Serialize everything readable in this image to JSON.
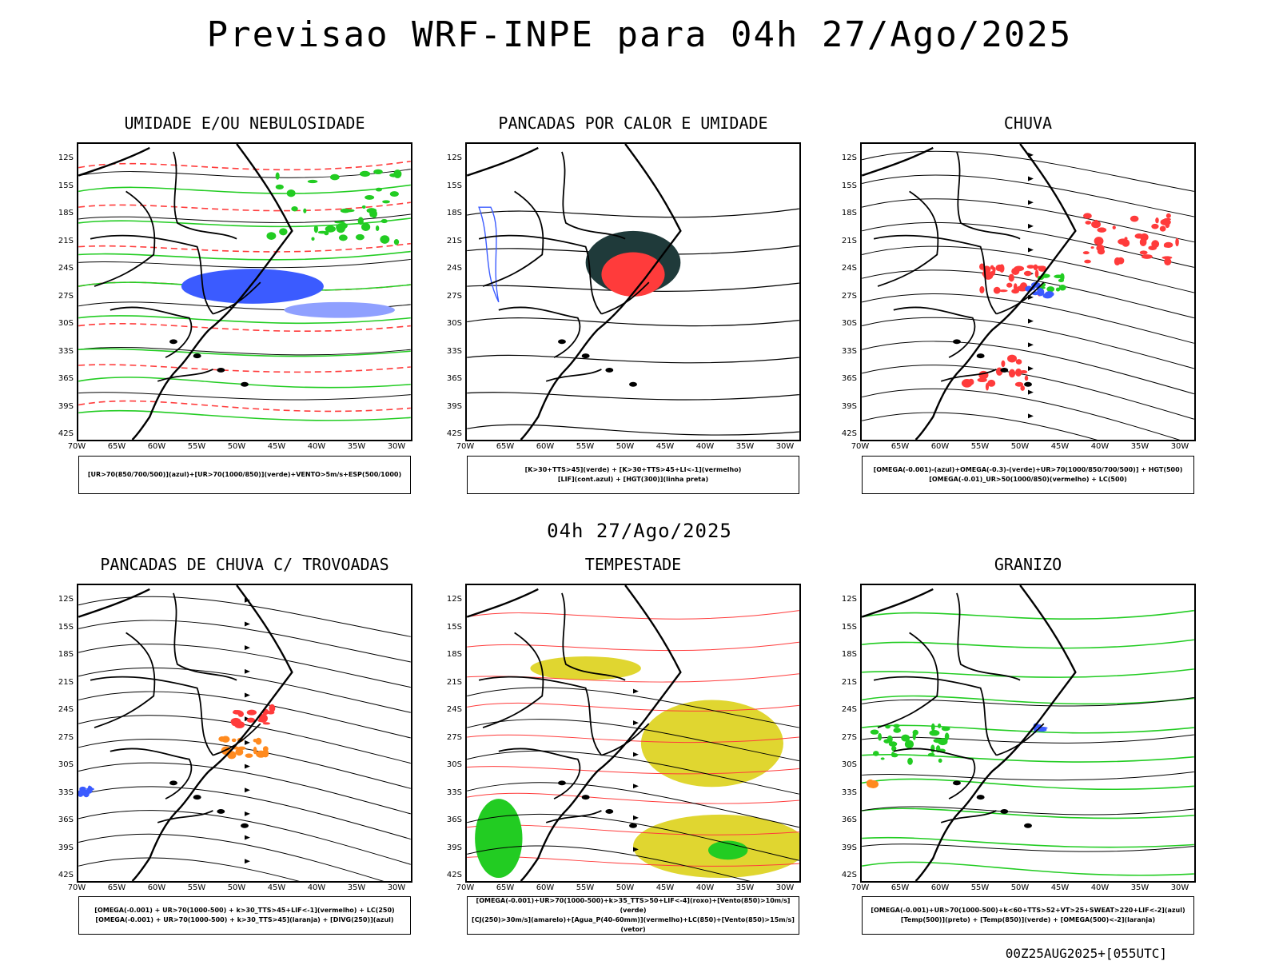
{
  "header": {
    "title": "Previsao WRF-INPE  para 04h 27/Ago/2025"
  },
  "mid_time": "04h 27/Ago/2025",
  "footer": "00Z25AUG2025+[055UTC]",
  "axes": {
    "lat_labels": [
      "12S",
      "15S",
      "18S",
      "21S",
      "24S",
      "27S",
      "30S",
      "33S",
      "36S",
      "39S",
      "42S"
    ],
    "lon_labels": [
      "70W",
      "65W",
      "60W",
      "55W",
      "50W",
      "45W",
      "40W",
      "35W",
      "30W"
    ]
  },
  "panels": [
    {
      "title": "UMIDADE E/OU NEBULOSIDADE",
      "legend": [
        "[UR>70(850/700/500)](azul)+[UR>70(1000/850)](verde)+VENTO>5m/s+ESP(500/1000)"
      ]
    },
    {
      "title": "PANCADAS POR CALOR E UMIDADE",
      "legend": [
        "[K>30+TTS>45](verde) + [K>30+TTS>45+LI<-1](vermelho)",
        "[LIF](cont.azul) + [HGT(300)](linha preta)"
      ]
    },
    {
      "title": "CHUVA",
      "legend": [
        "[OMEGA(-0.001)-(azul)+OMEGA(-0.3)-(verde)+UR>70(1000/850/700/500)] + HGT(500)",
        "[OMEGA(-0.01)_UR>50(1000/850)(vermelho) + LC(500)"
      ]
    },
    {
      "title": "PANCADAS DE CHUVA C/ TROVOADAS",
      "legend": [
        "[OMEGA(-0.001) + UR>70(1000-500) + k>30_TTS>45+LIF<-1](vermelho) + LC(250)",
        "[OMEGA(-0.001) + UR>70(1000-500) + k>30_TTS>45](laranja) + [DIVG(250)](azul)"
      ]
    },
    {
      "title": "TEMPESTADE",
      "legend": [
        "[OMEGA(-0.001)+UR>70(1000-500)+k>35_TTS>50+LIF<-4](roxo)+[Vento(850)>10m/s](verde)",
        "[CJ(250)>30m/s](amarelo)+[Agua_P(40-60mm)](vermelho)+LC(850)+[Vento(850)>15m/s](vetor)"
      ]
    },
    {
      "title": "GRANIZO",
      "legend": [
        "[OMEGA(-0.001)+UR>70(1000-500)+k<60+TTS>52+VT>25+SWEAT>220+LIF<-2](azul)",
        "[Temp(500)](preto) + [Temp(850)](verde) + [OMEGA(500)<-2](laranja)"
      ]
    }
  ],
  "colors": {
    "blue": "#3b5bff",
    "green": "#22cc22",
    "red": "#ff3b3b",
    "orange": "#ff8a1f",
    "yellow": "#e0d630",
    "darkteal": "#1f3a3a"
  }
}
